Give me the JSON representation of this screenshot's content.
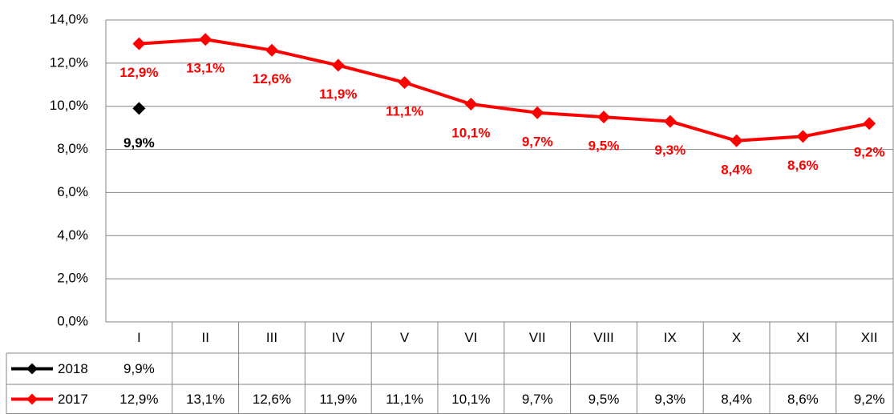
{
  "chart_data": {
    "type": "line",
    "categories": [
      "I",
      "II",
      "III",
      "IV",
      "V",
      "VI",
      "VII",
      "VIII",
      "IX",
      "X",
      "XI",
      "XII"
    ],
    "series": [
      {
        "name": "2018",
        "color": "#000000",
        "values": [
          9.9,
          null,
          null,
          null,
          null,
          null,
          null,
          null,
          null,
          null,
          null,
          null
        ],
        "value_labels": [
          "9,9%",
          null,
          null,
          null,
          null,
          null,
          null,
          null,
          null,
          null,
          null,
          null
        ]
      },
      {
        "name": "2017",
        "color": "#ff0000",
        "values": [
          12.9,
          13.1,
          12.6,
          11.9,
          11.1,
          10.1,
          9.7,
          9.5,
          9.3,
          8.4,
          8.6,
          9.2
        ],
        "value_labels": [
          "12,9%",
          "13,1%",
          "12,6%",
          "11,9%",
          "11,1%",
          "10,1%",
          "9,7%",
          "9,5%",
          "9,3%",
          "8,4%",
          "8,6%",
          "9,2%"
        ]
      }
    ],
    "ylim": [
      0,
      14
    ],
    "yticks": [
      {
        "value": 0,
        "label": "0,0%"
      },
      {
        "value": 2,
        "label": "2,0%"
      },
      {
        "value": 4,
        "label": "4,0%"
      },
      {
        "value": 6,
        "label": "6,0%"
      },
      {
        "value": 8,
        "label": "8,0%"
      },
      {
        "value": 10,
        "label": "10,0%"
      },
      {
        "value": 12,
        "label": "12,0%"
      },
      {
        "value": 14,
        "label": "14,0%"
      }
    ],
    "grid": true,
    "data_table": true
  }
}
